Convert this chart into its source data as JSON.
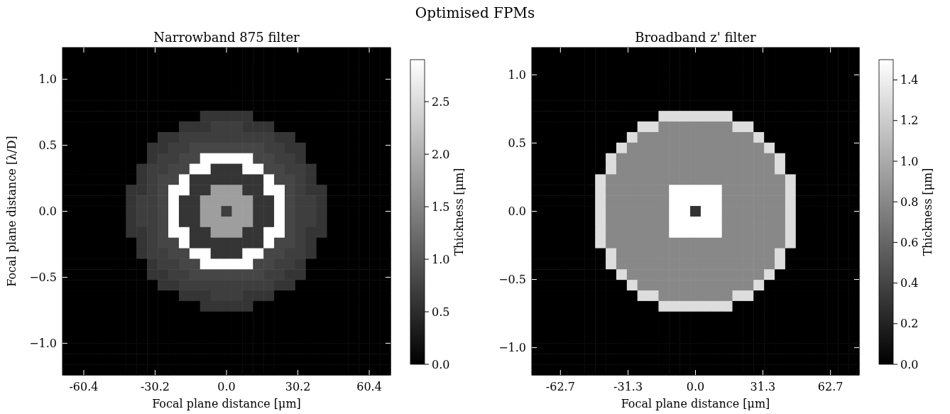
{
  "chart_data": [
    {
      "type": "heatmap",
      "title": "Narrowband 875 filter",
      "annotations": [
        "Optimised FPMs"
      ],
      "xlabel": "Focal plane distance [μm]",
      "ylabel": "Focal plane distance [λ/D]",
      "clabel": "Thickness [μm]",
      "xlim": [
        -69.4,
        69.4
      ],
      "xticks": [
        -60.4,
        -30.2,
        {
          "value": 0,
          "label": "0.0"
        },
        30.2,
        60.4
      ],
      "ylim": [
        -1.24,
        1.24
      ],
      "yticks": [
        {
          "value": -1,
          "label": "−1.0"
        },
        {
          "value": -0.5,
          "label": "−0.5"
        },
        {
          "value": 0,
          "label": "0.0"
        },
        0.5,
        {
          "value": 1,
          "label": "1.0"
        }
      ],
      "clim": [
        0,
        2.9
      ],
      "cticks": [
        {
          "value": 0,
          "label": "0.0"
        },
        0.5,
        {
          "value": 1,
          "label": "1.0"
        },
        1.5,
        {
          "value": 2,
          "label": "2.0"
        },
        2.5
      ],
      "cells": [
        [
          0,
          0,
          0,
          0,
          0,
          0,
          0,
          0,
          0,
          0,
          0,
          0,
          0,
          0,
          0,
          0,
          0,
          0,
          0,
          0,
          0,
          0,
          0,
          0,
          0,
          0,
          0,
          0,
          0,
          0,
          0
        ],
        [
          0,
          0,
          0,
          0,
          0,
          0,
          0,
          0,
          0,
          0,
          0,
          0,
          0,
          0,
          0,
          0,
          0,
          0,
          0,
          0,
          0,
          0,
          0,
          0,
          0,
          0,
          0,
          0,
          0,
          0,
          0
        ],
        [
          0,
          0,
          0,
          0,
          0,
          0,
          0,
          0,
          0,
          0,
          0,
          0,
          0,
          0,
          0,
          0,
          0,
          0,
          0,
          0,
          0,
          0,
          0,
          0,
          0,
          0,
          0,
          0,
          0,
          0,
          0
        ],
        [
          0,
          0,
          0,
          0,
          0,
          0,
          0,
          0,
          0,
          0,
          0,
          0,
          0,
          0,
          0,
          0,
          0,
          0,
          0,
          0,
          0,
          0,
          0,
          0,
          0,
          0,
          0,
          0,
          0,
          0,
          0
        ],
        [
          0,
          0,
          0,
          0,
          0,
          0,
          0,
          0,
          0,
          0,
          0,
          0,
          0,
          0,
          0,
          0,
          0,
          0,
          0,
          0,
          0,
          0,
          0,
          0,
          0,
          0,
          0,
          0,
          0,
          0,
          0
        ],
        [
          0,
          0,
          0,
          0,
          0,
          0,
          0,
          0,
          0,
          0,
          0,
          0,
          0,
          0,
          0,
          0,
          0,
          0,
          0,
          0,
          0,
          0,
          0,
          0,
          0,
          0,
          0,
          0,
          0,
          0,
          0
        ],
        [
          0,
          0,
          0,
          0,
          0,
          0,
          0,
          0,
          0,
          0,
          0,
          0,
          0,
          0.6,
          0.6,
          0.6,
          0.6,
          0.6,
          0,
          0,
          0,
          0,
          0,
          0,
          0,
          0,
          0,
          0,
          0,
          0,
          0
        ],
        [
          0,
          0,
          0,
          0,
          0,
          0,
          0,
          0,
          0,
          0,
          0,
          0.6,
          0.6,
          0.6,
          0.7,
          0.7,
          0.7,
          0.6,
          0.6,
          0.6,
          0,
          0,
          0,
          0,
          0,
          0,
          0,
          0,
          0,
          0,
          0
        ],
        [
          0,
          0,
          0,
          0,
          0,
          0,
          0,
          0,
          0,
          0.6,
          0.6,
          0.7,
          0.7,
          0.7,
          0.7,
          0.7,
          0.7,
          0.7,
          0.7,
          0.7,
          0.6,
          0.6,
          0,
          0,
          0,
          0,
          0,
          0,
          0,
          0,
          0
        ],
        [
          0,
          0,
          0,
          0,
          0,
          0,
          0,
          0,
          0.6,
          0.6,
          0.7,
          0.7,
          0.8,
          0.8,
          0.8,
          0.8,
          0.8,
          0.8,
          0.8,
          0.7,
          0.7,
          0.6,
          0.6,
          0,
          0,
          0,
          0,
          0,
          0,
          0,
          0
        ],
        [
          0,
          0,
          0,
          0,
          0,
          0,
          0,
          0,
          0.6,
          0.7,
          0.7,
          0.8,
          0.8,
          2.9,
          2.9,
          2.9,
          2.9,
          2.9,
          0.8,
          0.8,
          0.7,
          0.7,
          0.6,
          0,
          0,
          0,
          0,
          0,
          0,
          0,
          0
        ],
        [
          0,
          0,
          0,
          0,
          0,
          0,
          0,
          0.6,
          0.7,
          0.7,
          0.8,
          0.8,
          2.9,
          2.9,
          0.6,
          0.6,
          0.6,
          2.9,
          2.9,
          0.8,
          0.8,
          0.7,
          0.7,
          0.6,
          0,
          0,
          0,
          0,
          0,
          0,
          0
        ],
        [
          0,
          0,
          0,
          0,
          0,
          0,
          0,
          0.6,
          0.7,
          0.8,
          0.8,
          2.9,
          0.6,
          0.6,
          0.6,
          0.6,
          0.6,
          0.6,
          0.6,
          2.9,
          0.8,
          0.8,
          0.7,
          0.6,
          0,
          0,
          0,
          0,
          0,
          0,
          0
        ],
        [
          0,
          0,
          0,
          0,
          0,
          0,
          0.6,
          0.6,
          0.7,
          0.8,
          2.9,
          2.9,
          0.6,
          0.6,
          1.8,
          1.8,
          1.8,
          0.6,
          0.6,
          2.9,
          2.9,
          0.8,
          0.7,
          0.6,
          0.6,
          0,
          0,
          0,
          0,
          0,
          0
        ],
        [
          0,
          0,
          0,
          0,
          0,
          0,
          0.6,
          0.7,
          0.7,
          0.8,
          2.9,
          0.6,
          0.6,
          1.8,
          1.8,
          1.8,
          1.8,
          1.8,
          0.6,
          0.6,
          2.9,
          0.8,
          0.7,
          0.7,
          0.6,
          0,
          0,
          0,
          0,
          0,
          0
        ],
        [
          0,
          0,
          0,
          0,
          0,
          0,
          0.6,
          0.7,
          0.7,
          0.8,
          2.9,
          0.6,
          0.6,
          1.8,
          1.8,
          0.7,
          1.8,
          1.8,
          0.6,
          0.6,
          2.9,
          0.8,
          0.7,
          0.7,
          0.6,
          0,
          0,
          0,
          0,
          0,
          0
        ],
        [
          0,
          0,
          0,
          0,
          0,
          0,
          0.6,
          0.7,
          0.7,
          0.8,
          2.9,
          0.6,
          0.6,
          1.8,
          1.8,
          1.8,
          1.8,
          1.8,
          0.6,
          0.6,
          2.9,
          0.8,
          0.7,
          0.7,
          0.6,
          0,
          0,
          0,
          0,
          0,
          0
        ],
        [
          0,
          0,
          0,
          0,
          0,
          0,
          0.6,
          0.6,
          0.7,
          0.8,
          2.9,
          2.9,
          0.6,
          0.6,
          1.8,
          1.8,
          1.8,
          0.6,
          0.6,
          2.9,
          2.9,
          0.8,
          0.7,
          0.6,
          0.6,
          0,
          0,
          0,
          0,
          0,
          0
        ],
        [
          0,
          0,
          0,
          0,
          0,
          0,
          0,
          0.6,
          0.7,
          0.8,
          0.8,
          2.9,
          0.6,
          0.6,
          0.6,
          0.6,
          0.6,
          0.6,
          0.6,
          2.9,
          0.8,
          0.8,
          0.7,
          0.6,
          0,
          0,
          0,
          0,
          0,
          0,
          0
        ],
        [
          0,
          0,
          0,
          0,
          0,
          0,
          0,
          0.6,
          0.7,
          0.7,
          0.8,
          0.8,
          2.9,
          2.9,
          0.6,
          0.6,
          0.6,
          2.9,
          2.9,
          0.8,
          0.8,
          0.7,
          0.7,
          0.6,
          0,
          0,
          0,
          0,
          0,
          0,
          0
        ],
        [
          0,
          0,
          0,
          0,
          0,
          0,
          0,
          0,
          0.6,
          0.7,
          0.7,
          0.8,
          0.8,
          2.9,
          2.9,
          2.9,
          2.9,
          2.9,
          0.8,
          0.8,
          0.7,
          0.7,
          0.6,
          0,
          0,
          0,
          0,
          0,
          0,
          0,
          0
        ],
        [
          0,
          0,
          0,
          0,
          0,
          0,
          0,
          0,
          0.6,
          0.6,
          0.7,
          0.7,
          0.8,
          0.8,
          0.8,
          0.8,
          0.8,
          0.8,
          0.8,
          0.7,
          0.7,
          0.6,
          0.6,
          0,
          0,
          0,
          0,
          0,
          0,
          0,
          0
        ],
        [
          0,
          0,
          0,
          0,
          0,
          0,
          0,
          0,
          0,
          0.6,
          0.6,
          0.7,
          0.7,
          0.7,
          0.7,
          0.7,
          0.7,
          0.7,
          0.7,
          0.7,
          0.6,
          0.6,
          0,
          0,
          0,
          0,
          0,
          0,
          0,
          0,
          0
        ],
        [
          0,
          0,
          0,
          0,
          0,
          0,
          0,
          0,
          0,
          0,
          0,
          0.6,
          0.6,
          0.6,
          0.7,
          0.7,
          0.7,
          0.6,
          0.6,
          0.6,
          0,
          0,
          0,
          0,
          0,
          0,
          0,
          0,
          0,
          0,
          0
        ],
        [
          0,
          0,
          0,
          0,
          0,
          0,
          0,
          0,
          0,
          0,
          0,
          0,
          0,
          0.6,
          0.6,
          0.6,
          0.6,
          0.6,
          0,
          0,
          0,
          0,
          0,
          0,
          0,
          0,
          0,
          0,
          0,
          0,
          0
        ],
        [
          0,
          0,
          0,
          0,
          0,
          0,
          0,
          0,
          0,
          0,
          0,
          0,
          0,
          0,
          0,
          0,
          0,
          0,
          0,
          0,
          0,
          0,
          0,
          0,
          0,
          0,
          0,
          0,
          0,
          0,
          0
        ],
        [
          0,
          0,
          0,
          0,
          0,
          0,
          0,
          0,
          0,
          0,
          0,
          0,
          0,
          0,
          0,
          0,
          0,
          0,
          0,
          0,
          0,
          0,
          0,
          0,
          0,
          0,
          0,
          0,
          0,
          0,
          0
        ],
        [
          0,
          0,
          0,
          0,
          0,
          0,
          0,
          0,
          0,
          0,
          0,
          0,
          0,
          0,
          0,
          0,
          0,
          0,
          0,
          0,
          0,
          0,
          0,
          0,
          0,
          0,
          0,
          0,
          0,
          0,
          0
        ],
        [
          0,
          0,
          0,
          0,
          0,
          0,
          0,
          0,
          0,
          0,
          0,
          0,
          0,
          0,
          0,
          0,
          0,
          0,
          0,
          0,
          0,
          0,
          0,
          0,
          0,
          0,
          0,
          0,
          0,
          0,
          0
        ],
        [
          0,
          0,
          0,
          0,
          0,
          0,
          0,
          0,
          0,
          0,
          0,
          0,
          0,
          0,
          0,
          0,
          0,
          0,
          0,
          0,
          0,
          0,
          0,
          0,
          0,
          0,
          0,
          0,
          0,
          0,
          0
        ],
        [
          0,
          0,
          0,
          0,
          0,
          0,
          0,
          0,
          0,
          0,
          0,
          0,
          0,
          0,
          0,
          0,
          0,
          0,
          0,
          0,
          0,
          0,
          0,
          0,
          0,
          0,
          0,
          0,
          0,
          0,
          0
        ]
      ]
    },
    {
      "type": "heatmap",
      "title": "Broadband z' filter",
      "xlabel": "Focal plane distance [μm]",
      "clabel": "Thickness [μm]",
      "xlim": [
        -76,
        76
      ],
      "xticks": [
        -62.7,
        -31.3,
        {
          "value": 0,
          "label": "0.0"
        },
        31.3,
        62.7
      ],
      "ylim": [
        -1.2,
        1.2
      ],
      "yticks": [
        {
          "value": -1,
          "label": "−1.0"
        },
        {
          "value": -0.5,
          "label": "−0.5"
        },
        {
          "value": 0,
          "label": "0.0"
        },
        0.5,
        {
          "value": 1,
          "label": "1.0"
        }
      ],
      "clim": [
        0,
        1.5
      ],
      "cticks": [
        {
          "value": 0,
          "label": "0.0"
        },
        0.2,
        0.4,
        0.6,
        0.8,
        {
          "value": 1,
          "label": "1.0"
        },
        1.2,
        1.4
      ],
      "cells": [
        [
          0,
          0,
          0,
          0,
          0,
          0,
          0,
          0,
          0,
          0,
          0,
          0,
          0,
          0,
          0,
          0,
          0,
          0,
          0,
          0,
          0,
          0,
          0,
          0,
          0,
          0,
          0,
          0,
          0,
          0,
          0
        ],
        [
          0,
          0,
          0,
          0,
          0,
          0,
          0,
          0,
          0,
          0,
          0,
          0,
          0,
          0,
          0,
          0,
          0,
          0,
          0,
          0,
          0,
          0,
          0,
          0,
          0,
          0,
          0,
          0,
          0,
          0,
          0
        ],
        [
          0,
          0,
          0,
          0,
          0,
          0,
          0,
          0,
          0,
          0,
          0,
          0,
          0,
          0,
          0,
          0,
          0,
          0,
          0,
          0,
          0,
          0,
          0,
          0,
          0,
          0,
          0,
          0,
          0,
          0,
          0
        ],
        [
          0,
          0,
          0,
          0,
          0,
          0,
          0,
          0,
          0,
          0,
          0,
          0,
          0,
          0,
          0,
          0,
          0,
          0,
          0,
          0,
          0,
          0,
          0,
          0,
          0,
          0,
          0,
          0,
          0,
          0,
          0
        ],
        [
          0,
          0,
          0,
          0,
          0,
          0,
          0,
          0,
          0,
          0,
          0,
          0,
          0,
          0,
          0,
          0,
          0,
          0,
          0,
          0,
          0,
          0,
          0,
          0,
          0,
          0,
          0,
          0,
          0,
          0,
          0
        ],
        [
          0,
          0,
          0,
          0,
          0,
          0,
          0,
          0,
          0,
          0,
          0,
          0,
          0,
          0,
          0,
          0,
          0,
          0,
          0,
          0,
          0,
          0,
          0,
          0,
          0,
          0,
          0,
          0,
          0,
          0,
          0
        ],
        [
          0,
          0,
          0,
          0,
          0,
          0,
          0,
          0,
          0,
          0,
          0,
          0,
          1.3,
          1.3,
          1.3,
          1.3,
          1.3,
          1.3,
          1.3,
          0,
          0,
          0,
          0,
          0,
          0,
          0,
          0,
          0,
          0,
          0,
          0
        ],
        [
          0,
          0,
          0,
          0,
          0,
          0,
          0,
          0,
          0,
          0,
          1.3,
          1.3,
          0.8,
          0.8,
          0.8,
          0.8,
          0.8,
          0.8,
          0.8,
          1.3,
          1.3,
          0,
          0,
          0,
          0,
          0,
          0,
          0,
          0,
          0,
          0
        ],
        [
          0,
          0,
          0,
          0,
          0,
          0,
          0,
          0,
          0,
          1.3,
          0.8,
          0.8,
          0.8,
          0.8,
          0.8,
          0.8,
          0.8,
          0.8,
          0.8,
          0.8,
          0.8,
          1.3,
          0,
          0,
          0,
          0,
          0,
          0,
          0,
          0,
          0
        ],
        [
          0,
          0,
          0,
          0,
          0,
          0,
          0,
          0,
          1.3,
          0.8,
          0.8,
          0.8,
          0.8,
          0.8,
          0.8,
          0.8,
          0.8,
          0.8,
          0.8,
          0.8,
          0.8,
          0.8,
          1.3,
          0,
          0,
          0,
          0,
          0,
          0,
          0,
          0
        ],
        [
          0,
          0,
          0,
          0,
          0,
          0,
          0,
          1.3,
          0.8,
          0.8,
          0.8,
          0.8,
          0.8,
          0.8,
          0.8,
          0.8,
          0.8,
          0.8,
          0.8,
          0.8,
          0.8,
          0.8,
          0.8,
          1.3,
          0,
          0,
          0,
          0,
          0,
          0,
          0
        ],
        [
          0,
          0,
          0,
          0,
          0,
          0,
          0,
          1.3,
          0.8,
          0.8,
          0.8,
          0.8,
          0.8,
          0.8,
          0.8,
          0.8,
          0.8,
          0.8,
          0.8,
          0.8,
          0.8,
          0.8,
          0.8,
          1.3,
          0,
          0,
          0,
          0,
          0,
          0,
          0
        ],
        [
          0,
          0,
          0,
          0,
          0,
          0,
          1.3,
          0.8,
          0.8,
          0.8,
          0.8,
          0.8,
          0.8,
          0.8,
          0.8,
          0.8,
          0.8,
          0.8,
          0.8,
          0.8,
          0.8,
          0.8,
          0.8,
          0.8,
          1.3,
          0,
          0,
          0,
          0,
          0,
          0
        ],
        [
          0,
          0,
          0,
          0,
          0,
          0,
          1.3,
          0.8,
          0.8,
          0.8,
          0.8,
          0.8,
          0.8,
          1.5,
          1.5,
          1.5,
          1.5,
          1.5,
          0.8,
          0.8,
          0.8,
          0.8,
          0.8,
          0.8,
          1.3,
          0,
          0,
          0,
          0,
          0,
          0
        ],
        [
          0,
          0,
          0,
          0,
          0,
          0,
          1.3,
          0.8,
          0.8,
          0.8,
          0.8,
          0.8,
          0.8,
          1.5,
          1.5,
          1.5,
          1.5,
          1.5,
          0.8,
          0.8,
          0.8,
          0.8,
          0.8,
          0.8,
          1.3,
          0,
          0,
          0,
          0,
          0,
          0
        ],
        [
          0,
          0,
          0,
          0,
          0,
          0,
          1.3,
          0.8,
          0.8,
          0.8,
          0.8,
          0.8,
          0.8,
          1.5,
          1.5,
          0.3,
          1.5,
          1.5,
          0.8,
          0.8,
          0.8,
          0.8,
          0.8,
          0.8,
          1.3,
          0,
          0,
          0,
          0,
          0,
          0
        ],
        [
          0,
          0,
          0,
          0,
          0,
          0,
          1.3,
          0.8,
          0.8,
          0.8,
          0.8,
          0.8,
          0.8,
          1.5,
          1.5,
          1.5,
          1.5,
          1.5,
          0.8,
          0.8,
          0.8,
          0.8,
          0.8,
          0.8,
          1.3,
          0,
          0,
          0,
          0,
          0,
          0
        ],
        [
          0,
          0,
          0,
          0,
          0,
          0,
          1.3,
          0.8,
          0.8,
          0.8,
          0.8,
          0.8,
          0.8,
          1.5,
          1.5,
          1.5,
          1.5,
          1.5,
          0.8,
          0.8,
          0.8,
          0.8,
          0.8,
          0.8,
          1.3,
          0,
          0,
          0,
          0,
          0,
          0
        ],
        [
          0,
          0,
          0,
          0,
          0,
          0,
          1.3,
          0.8,
          0.8,
          0.8,
          0.8,
          0.8,
          0.8,
          0.8,
          0.8,
          0.8,
          0.8,
          0.8,
          0.8,
          0.8,
          0.8,
          0.8,
          0.8,
          0.8,
          1.3,
          0,
          0,
          0,
          0,
          0,
          0
        ],
        [
          0,
          0,
          0,
          0,
          0,
          0,
          0,
          1.3,
          0.8,
          0.8,
          0.8,
          0.8,
          0.8,
          0.8,
          0.8,
          0.8,
          0.8,
          0.8,
          0.8,
          0.8,
          0.8,
          0.8,
          0.8,
          1.3,
          0,
          0,
          0,
          0,
          0,
          0,
          0
        ],
        [
          0,
          0,
          0,
          0,
          0,
          0,
          0,
          1.3,
          0.8,
          0.8,
          0.8,
          0.8,
          0.8,
          0.8,
          0.8,
          0.8,
          0.8,
          0.8,
          0.8,
          0.8,
          0.8,
          0.8,
          0.8,
          1.3,
          0,
          0,
          0,
          0,
          0,
          0,
          0
        ],
        [
          0,
          0,
          0,
          0,
          0,
          0,
          0,
          0,
          1.3,
          0.8,
          0.8,
          0.8,
          0.8,
          0.8,
          0.8,
          0.8,
          0.8,
          0.8,
          0.8,
          0.8,
          0.8,
          0.8,
          1.3,
          0,
          0,
          0,
          0,
          0,
          0,
          0,
          0
        ],
        [
          0,
          0,
          0,
          0,
          0,
          0,
          0,
          0,
          0,
          1.3,
          0.8,
          0.8,
          0.8,
          0.8,
          0.8,
          0.8,
          0.8,
          0.8,
          0.8,
          0.8,
          0.8,
          1.3,
          0,
          0,
          0,
          0,
          0,
          0,
          0,
          0,
          0
        ],
        [
          0,
          0,
          0,
          0,
          0,
          0,
          0,
          0,
          0,
          0,
          1.3,
          1.3,
          0.8,
          0.8,
          0.8,
          0.8,
          0.8,
          0.8,
          0.8,
          1.3,
          1.3,
          0,
          0,
          0,
          0,
          0,
          0,
          0,
          0,
          0,
          0
        ],
        [
          0,
          0,
          0,
          0,
          0,
          0,
          0,
          0,
          0,
          0,
          0,
          0,
          1.3,
          1.3,
          1.3,
          1.3,
          1.3,
          1.3,
          1.3,
          0,
          0,
          0,
          0,
          0,
          0,
          0,
          0,
          0,
          0,
          0,
          0
        ],
        [
          0,
          0,
          0,
          0,
          0,
          0,
          0,
          0,
          0,
          0,
          0,
          0,
          0,
          0,
          0,
          0,
          0,
          0,
          0,
          0,
          0,
          0,
          0,
          0,
          0,
          0,
          0,
          0,
          0,
          0,
          0
        ],
        [
          0,
          0,
          0,
          0,
          0,
          0,
          0,
          0,
          0,
          0,
          0,
          0,
          0,
          0,
          0,
          0,
          0,
          0,
          0,
          0,
          0,
          0,
          0,
          0,
          0,
          0,
          0,
          0,
          0,
          0,
          0
        ],
        [
          0,
          0,
          0,
          0,
          0,
          0,
          0,
          0,
          0,
          0,
          0,
          0,
          0,
          0,
          0,
          0,
          0,
          0,
          0,
          0,
          0,
          0,
          0,
          0,
          0,
          0,
          0,
          0,
          0,
          0,
          0
        ],
        [
          0,
          0,
          0,
          0,
          0,
          0,
          0,
          0,
          0,
          0,
          0,
          0,
          0,
          0,
          0,
          0,
          0,
          0,
          0,
          0,
          0,
          0,
          0,
          0,
          0,
          0,
          0,
          0,
          0,
          0,
          0
        ],
        [
          0,
          0,
          0,
          0,
          0,
          0,
          0,
          0,
          0,
          0,
          0,
          0,
          0,
          0,
          0,
          0,
          0,
          0,
          0,
          0,
          0,
          0,
          0,
          0,
          0,
          0,
          0,
          0,
          0,
          0,
          0
        ],
        [
          0,
          0,
          0,
          0,
          0,
          0,
          0,
          0,
          0,
          0,
          0,
          0,
          0,
          0,
          0,
          0,
          0,
          0,
          0,
          0,
          0,
          0,
          0,
          0,
          0,
          0,
          0,
          0,
          0,
          0,
          0
        ]
      ]
    }
  ]
}
